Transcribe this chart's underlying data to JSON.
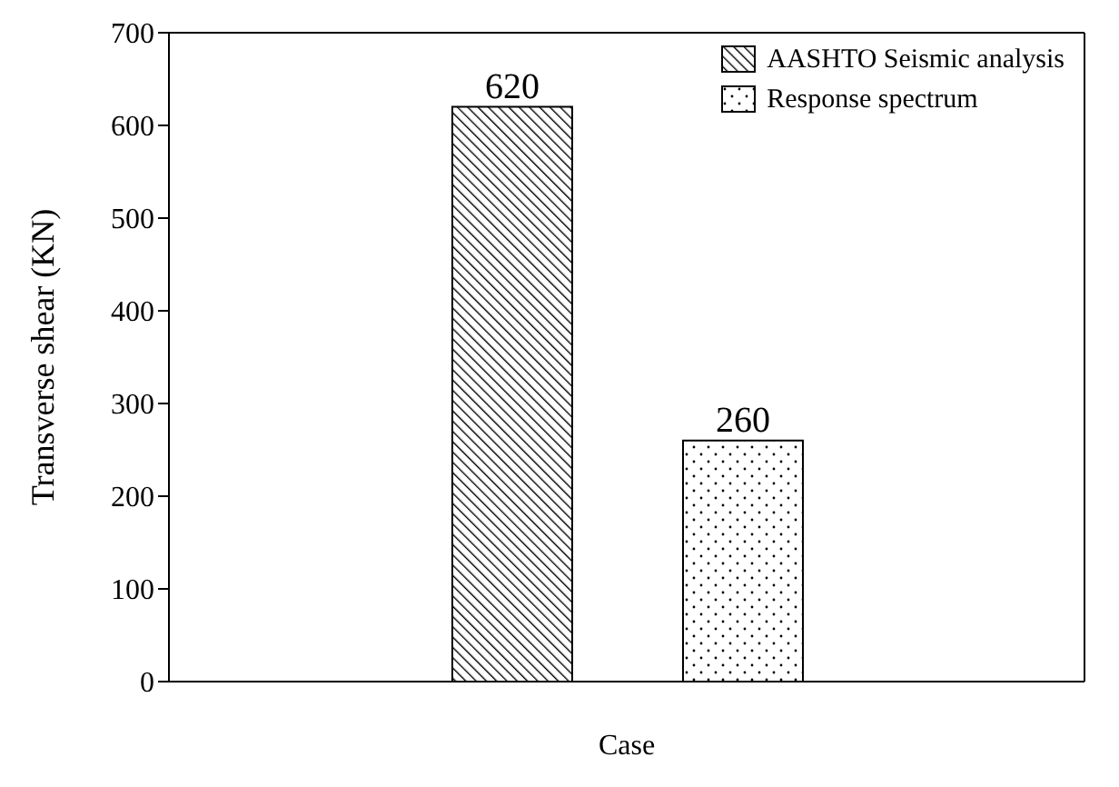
{
  "chart_data": {
    "type": "bar",
    "xlabel": "Case",
    "ylabel": "Transverse shear (KN)",
    "categories": [
      null
    ],
    "series": [
      {
        "name": "AASHTO Seismic analysis",
        "color": "#000000",
        "values": [
          620
        ]
      },
      {
        "name": "Response spectrum",
        "color": "#000000",
        "values": [
          260
        ]
      }
    ],
    "ylim": [
      0,
      700
    ],
    "yticks": [
      0,
      100,
      200,
      300,
      400,
      500,
      600,
      700
    ],
    "data_labels": true,
    "legend": "top right",
    "grid": false
  }
}
